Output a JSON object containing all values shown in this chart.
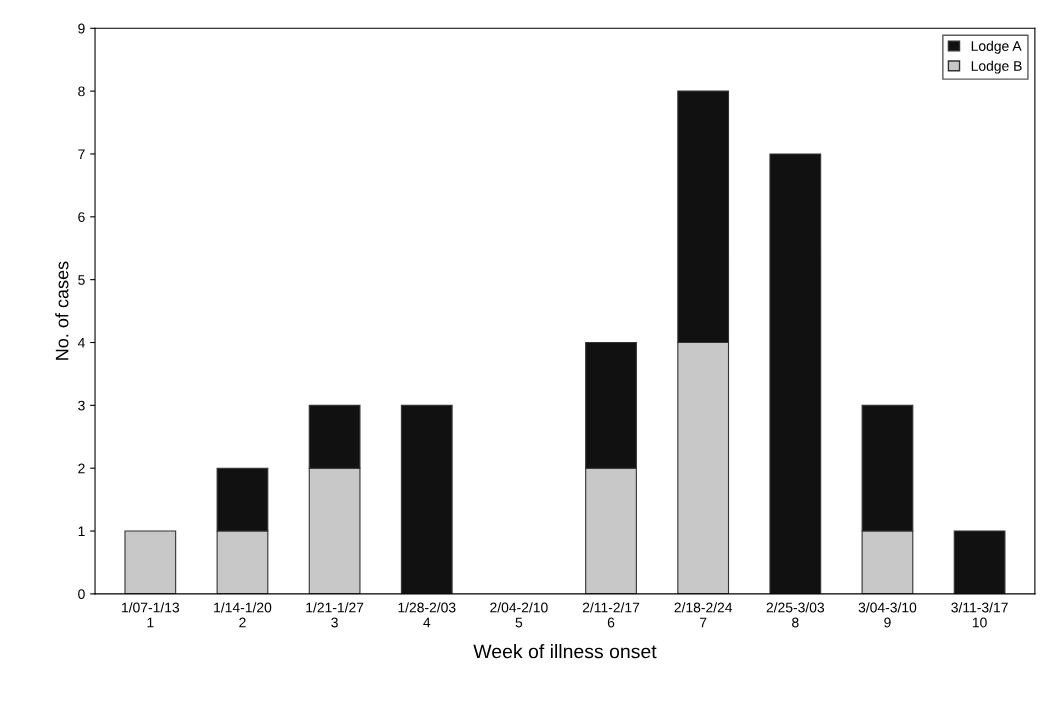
{
  "chart_data": {
    "type": "bar",
    "stacked": true,
    "xlabel": "Week of illness onset",
    "ylabel": "No. of cases",
    "categories": [
      "1/07-1/13\n1",
      "1/14-1/20\n2",
      "1/21-1/27\n3",
      "1/28-2/03\n4",
      "2/04-2/10\n5",
      "2/11-2/17\n6",
      "2/18-2/24\n7",
      "2/25-3/03\n8",
      "3/04-3/10\n9",
      "3/11-3/17\n10"
    ],
    "series": [
      {
        "name": "Lodge B",
        "color": "#c8c8c8",
        "values": [
          1,
          1,
          2,
          0,
          0,
          2,
          4,
          0,
          1,
          0
        ]
      },
      {
        "name": "Lodge A",
        "color": "#111111",
        "values": [
          0,
          1,
          1,
          3,
          0,
          2,
          4,
          7,
          2,
          1
        ]
      }
    ],
    "ylim": [
      0,
      9
    ],
    "yticks": [
      0,
      1,
      2,
      3,
      4,
      5,
      6,
      7,
      8,
      9
    ],
    "grid": false,
    "legend": "top right"
  }
}
